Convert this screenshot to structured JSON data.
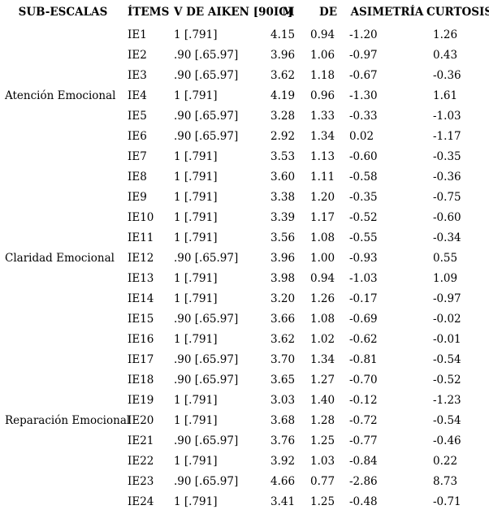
{
  "table": {
    "headers": [
      {
        "key": "subscale",
        "label": "SUB-ESCALAS"
      },
      {
        "key": "item",
        "label": "ÍTEMS"
      },
      {
        "key": "aiken",
        "label": "V DE AIKEN [90IC]"
      },
      {
        "key": "m",
        "label": "M"
      },
      {
        "key": "de",
        "label": "DE"
      },
      {
        "key": "asymmetry",
        "label": "ASIMETRÍA"
      },
      {
        "key": "kurtosis",
        "label": "CURTOSIS"
      }
    ],
    "rows": [
      {
        "subscale": "",
        "item": "IE1",
        "aiken": "1 [.791]",
        "m": "4.15",
        "de": "0.94",
        "asymmetry": "-1.20",
        "kurtosis": "1.26"
      },
      {
        "subscale": "",
        "item": "IE2",
        "aiken": ".90 [.65.97]",
        "m": "3.96",
        "de": "1.06",
        "asymmetry": "-0.97",
        "kurtosis": "0.43"
      },
      {
        "subscale": "",
        "item": "IE3",
        "aiken": ".90 [.65.97]",
        "m": "3.62",
        "de": "1.18",
        "asymmetry": "-0.67",
        "kurtosis": "-0.36"
      },
      {
        "subscale": "Atención Emocional",
        "item": "IE4",
        "aiken": "1 [.791]",
        "m": "4.19",
        "de": "0.96",
        "asymmetry": "-1.30",
        "kurtosis": "1.61"
      },
      {
        "subscale": "",
        "item": "IE5",
        "aiken": ".90 [.65.97]",
        "m": "3.28",
        "de": "1.33",
        "asymmetry": "-0.33",
        "kurtosis": "-1.03"
      },
      {
        "subscale": "",
        "item": "IE6",
        "aiken": ".90 [.65.97]",
        "m": "2.92",
        "de": "1.34",
        "asymmetry": "0.02",
        "kurtosis": "-1.17"
      },
      {
        "subscale": "",
        "item": "IE7",
        "aiken": "1 [.791]",
        "m": "3.53",
        "de": "1.13",
        "asymmetry": "-0.60",
        "kurtosis": "-0.35"
      },
      {
        "subscale": "",
        "item": "IE8",
        "aiken": "1 [.791]",
        "m": "3.60",
        "de": "1.11",
        "asymmetry": "-0.58",
        "kurtosis": "-0.36"
      },
      {
        "subscale": "",
        "item": "IE9",
        "aiken": "1 [.791]",
        "m": "3.38",
        "de": "1.20",
        "asymmetry": "-0.35",
        "kurtosis": "-0.75"
      },
      {
        "subscale": "",
        "item": "IE10",
        "aiken": "1 [.791]",
        "m": "3.39",
        "de": "1.17",
        "asymmetry": "-0.52",
        "kurtosis": "-0.60"
      },
      {
        "subscale": "",
        "item": "IE11",
        "aiken": "1 [.791]",
        "m": "3.56",
        "de": "1.08",
        "asymmetry": "-0.55",
        "kurtosis": "-0.34"
      },
      {
        "subscale": "Claridad Emocional",
        "item": "IE12",
        "aiken": ".90 [.65.97]",
        "m": "3.96",
        "de": "1.00",
        "asymmetry": "-0.93",
        "kurtosis": "0.55"
      },
      {
        "subscale": "",
        "item": "IE13",
        "aiken": "1 [.791]",
        "m": "3.98",
        "de": "0.94",
        "asymmetry": "-1.03",
        "kurtosis": "1.09"
      },
      {
        "subscale": "",
        "item": "IE14",
        "aiken": "1 [.791]",
        "m": "3.20",
        "de": "1.26",
        "asymmetry": "-0.17",
        "kurtosis": "-0.97"
      },
      {
        "subscale": "",
        "item": "IE15",
        "aiken": ".90 [.65.97]",
        "m": "3.66",
        "de": "1.08",
        "asymmetry": "-0.69",
        "kurtosis": "-0.02"
      },
      {
        "subscale": "",
        "item": "IE16",
        "aiken": "1 [.791]",
        "m": "3.62",
        "de": "1.02",
        "asymmetry": "-0.62",
        "kurtosis": "-0.01"
      },
      {
        "subscale": "",
        "item": "IE17",
        "aiken": ".90 [.65.97]",
        "m": "3.70",
        "de": "1.34",
        "asymmetry": "-0.81",
        "kurtosis": "-0.54"
      },
      {
        "subscale": "",
        "item": "IE18",
        "aiken": ".90 [.65.97]",
        "m": "3.65",
        "de": "1.27",
        "asymmetry": "-0.70",
        "kurtosis": "-0.52"
      },
      {
        "subscale": "",
        "item": "IE19",
        "aiken": "1 [.791]",
        "m": "3.03",
        "de": "1.40",
        "asymmetry": "-0.12",
        "kurtosis": "-1.23"
      },
      {
        "subscale": "Reparación Emocional",
        "item": "IE20",
        "aiken": "1 [.791]",
        "m": "3.68",
        "de": "1.28",
        "asymmetry": "-0.72",
        "kurtosis": "-0.54"
      },
      {
        "subscale": "",
        "item": "IE21",
        "aiken": ".90 [.65.97]",
        "m": "3.76",
        "de": "1.25",
        "asymmetry": "-0.77",
        "kurtosis": "-0.46"
      },
      {
        "subscale": "",
        "item": "IE22",
        "aiken": "1 [.791]",
        "m": "3.92",
        "de": "1.03",
        "asymmetry": "-0.84",
        "kurtosis": "0.22"
      },
      {
        "subscale": "",
        "item": "IE23",
        "aiken": ".90 [.65.97]",
        "m": "4.66",
        "de": "0.77",
        "asymmetry": "-2.86",
        "kurtosis": "8.73"
      },
      {
        "subscale": "",
        "item": "IE24",
        "aiken": "1 [.791]",
        "m": "3.41",
        "de": "1.25",
        "asymmetry": "-0.48",
        "kurtosis": "-0.71"
      }
    ]
  }
}
